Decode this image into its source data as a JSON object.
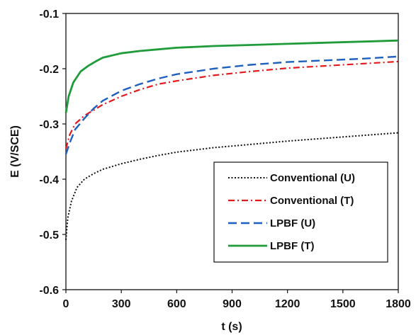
{
  "chart_data": {
    "type": "line",
    "title": "",
    "xlabel": "t (s)",
    "ylabel": "E (V/SCE)",
    "xlim": [
      0,
      1800
    ],
    "ylim": [
      -0.6,
      -0.1
    ],
    "xticks": [
      0,
      300,
      600,
      900,
      1200,
      1500,
      1800
    ],
    "yticks": [
      -0.6,
      -0.5,
      -0.4,
      -0.3,
      -0.2,
      -0.1
    ],
    "xtick_labels": [
      "0",
      "300",
      "600",
      "900",
      "1200",
      "1500",
      "1800"
    ],
    "ytick_labels": [
      "-0.6",
      "-0.5",
      "-0.4",
      "-0.3",
      "-0.2",
      "-0.1"
    ],
    "grid": false,
    "legend_position": "bottom-right",
    "series": [
      {
        "name": "Conventional (U)",
        "color": "#111111",
        "style": "dotted",
        "points": [
          [
            0,
            -0.51
          ],
          [
            10,
            -0.47
          ],
          [
            30,
            -0.44
          ],
          [
            60,
            -0.415
          ],
          [
            100,
            -0.4
          ],
          [
            150,
            -0.39
          ],
          [
            200,
            -0.382
          ],
          [
            300,
            -0.372
          ],
          [
            400,
            -0.364
          ],
          [
            500,
            -0.357
          ],
          [
            600,
            -0.351
          ],
          [
            800,
            -0.343
          ],
          [
            1000,
            -0.337
          ],
          [
            1200,
            -0.331
          ],
          [
            1400,
            -0.326
          ],
          [
            1600,
            -0.321
          ],
          [
            1800,
            -0.316
          ]
        ]
      },
      {
        "name": "Conventional (T)",
        "color": "#e31a1c",
        "style": "dashdot",
        "points": [
          [
            0,
            -0.345
          ],
          [
            20,
            -0.32
          ],
          [
            50,
            -0.3
          ],
          [
            100,
            -0.285
          ],
          [
            150,
            -0.275
          ],
          [
            200,
            -0.265
          ],
          [
            300,
            -0.25
          ],
          [
            400,
            -0.238
          ],
          [
            500,
            -0.228
          ],
          [
            600,
            -0.222
          ],
          [
            800,
            -0.212
          ],
          [
            1000,
            -0.205
          ],
          [
            1200,
            -0.199
          ],
          [
            1400,
            -0.195
          ],
          [
            1600,
            -0.191
          ],
          [
            1800,
            -0.187
          ]
        ]
      },
      {
        "name": "LPBF (U)",
        "color": "#1f5fbf",
        "style": "dashed",
        "points": [
          [
            0,
            -0.355
          ],
          [
            20,
            -0.335
          ],
          [
            50,
            -0.31
          ],
          [
            100,
            -0.29
          ],
          [
            150,
            -0.272
          ],
          [
            200,
            -0.258
          ],
          [
            300,
            -0.24
          ],
          [
            400,
            -0.228
          ],
          [
            500,
            -0.218
          ],
          [
            600,
            -0.21
          ],
          [
            800,
            -0.2
          ],
          [
            1000,
            -0.193
          ],
          [
            1200,
            -0.188
          ],
          [
            1400,
            -0.185
          ],
          [
            1600,
            -0.182
          ],
          [
            1800,
            -0.178
          ]
        ]
      },
      {
        "name": "LPBF (T)",
        "color": "#1f9b3a",
        "style": "solid",
        "points": [
          [
            0,
            -0.28
          ],
          [
            15,
            -0.25
          ],
          [
            40,
            -0.225
          ],
          [
            80,
            -0.205
          ],
          [
            120,
            -0.195
          ],
          [
            160,
            -0.187
          ],
          [
            200,
            -0.18
          ],
          [
            300,
            -0.172
          ],
          [
            400,
            -0.168
          ],
          [
            500,
            -0.165
          ],
          [
            600,
            -0.162
          ],
          [
            800,
            -0.159
          ],
          [
            1000,
            -0.157
          ],
          [
            1200,
            -0.155
          ],
          [
            1400,
            -0.153
          ],
          [
            1600,
            -0.151
          ],
          [
            1800,
            -0.149
          ]
        ]
      }
    ]
  }
}
